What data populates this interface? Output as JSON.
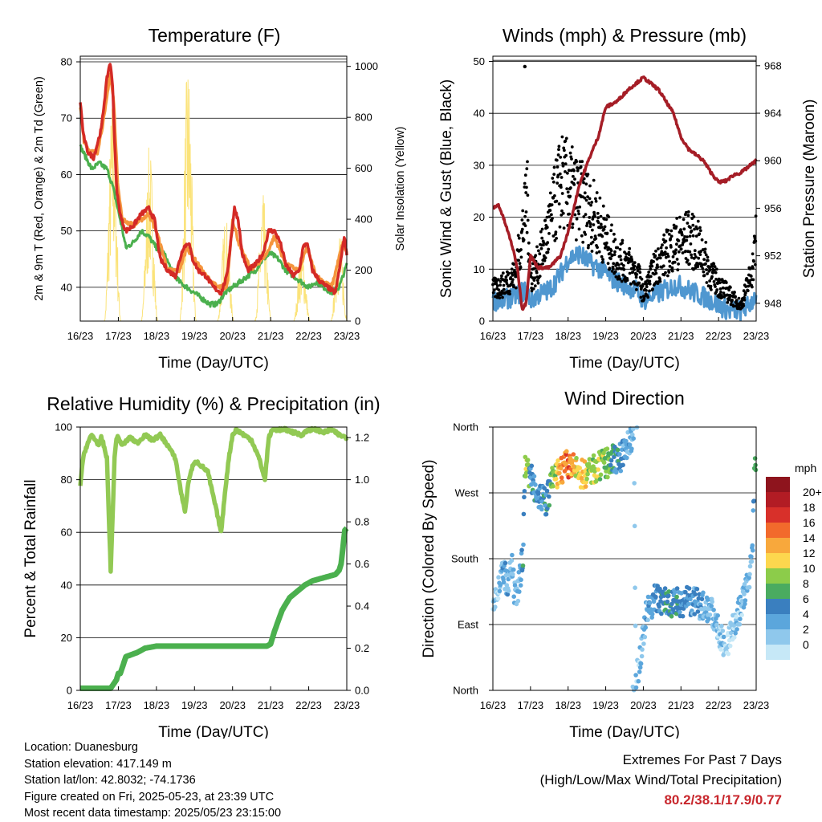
{
  "panels": {
    "temperature": {
      "title": "Temperature (F)",
      "ylabel_left": "2m & 9m T (Red, Orange) & 2m Td (Green)",
      "ylabel_right": "Solar Insolation (Yellow)",
      "xlabel": "Time (Day/UTC)"
    },
    "winds": {
      "title": "Winds (mph) & Pressure (mb)",
      "ylabel_left": "Sonic Wind & Gust (Blue, Black)",
      "ylabel_right": "Station Pressure (Maroon)",
      "xlabel": "Time (Day/UTC)"
    },
    "humidity": {
      "title": "Relative Humidity (%) & Precipitation (in)",
      "ylabel_left": "Percent & Total Rainfall",
      "xlabel": "Time (Day/UTC)"
    },
    "direction": {
      "title": "Wind Direction",
      "ylabel_left": "Direction (Colored By Speed)",
      "xlabel": "Time (Day/UTC)",
      "legend_title": "mph"
    }
  },
  "footer": {
    "location": "Location: Duanesburg",
    "elevation": "Station elevation: 417.149 m",
    "latlon": "Station lat/lon: 42.8032; -74.1736",
    "created": "Figure created on Fri, 2025-05-23, at 23:39 UTC",
    "recent": "Most recent data timestamp: 2025/05/23 23:15:00",
    "extremes_title": "Extremes For Past 7 Days",
    "extremes_sub": "(High/Low/Max Wind/Total Precipitation)",
    "extremes_values": "80.2/38.1/17.9/0.77"
  },
  "colors": {
    "temp_2m": "#d42a26",
    "temp_9m": "#f5953d",
    "dewpoint": "#4bb04e",
    "solar": "#fbe37a",
    "wind": "#4f97d0",
    "gust": "#000000",
    "pressure": "#a51d26",
    "rh": "#92c954",
    "precip": "#4bb04e",
    "speed_scale": [
      "#c6e8f7",
      "#8fc8ec",
      "#5ba6dc",
      "#3a7fbf",
      "#4aab60",
      "#8ccc4a",
      "#fdd74e",
      "#f8a83c",
      "#f26a2c",
      "#d8302a",
      "#b21c24",
      "#8e141d"
    ]
  },
  "chart_data": [
    {
      "id": "temperature",
      "type": "line",
      "x_ticks": [
        "16/23",
        "17/23",
        "18/23",
        "19/23",
        "20/23",
        "21/23",
        "22/23",
        "23/23"
      ],
      "y_left_ticks": [
        40,
        50,
        60,
        70,
        80
      ],
      "y_right_ticks": [
        0,
        200,
        400,
        600,
        800,
        1000
      ],
      "ylim": [
        34,
        81
      ],
      "ylim_right": [
        0,
        1040
      ],
      "xlim_days": [
        0,
        7
      ],
      "series": [
        {
          "name": "2m T",
          "axis": "left",
          "x": [
            0,
            0.08,
            0.2,
            0.35,
            0.55,
            0.7,
            0.78,
            0.85,
            0.9,
            0.95,
            1.0,
            1.08,
            1.2,
            1.4,
            1.6,
            1.8,
            1.95,
            2.1,
            2.3,
            2.5,
            2.7,
            2.85,
            2.95,
            3.1,
            3.3,
            3.5,
            3.7,
            3.85,
            3.95,
            4.05,
            4.15,
            4.25,
            4.4,
            4.6,
            4.8,
            4.95,
            5.1,
            5.25,
            5.4,
            5.6,
            5.75,
            5.85,
            5.95,
            6.1,
            6.3,
            6.5,
            6.7,
            6.85,
            6.93,
            7.0
          ],
          "y": [
            73,
            67,
            64,
            63,
            68,
            77,
            80,
            76,
            66,
            58,
            55,
            52,
            50,
            51,
            53,
            54,
            52,
            45,
            43,
            42,
            47,
            48,
            45,
            43,
            42,
            40,
            39,
            42,
            48,
            54,
            52,
            46,
            43,
            44,
            46,
            50,
            50,
            48,
            44,
            42,
            43,
            47,
            48,
            43,
            41,
            40,
            39,
            45,
            49,
            46
          ]
        },
        {
          "name": "9m T",
          "axis": "left",
          "x": [
            0,
            0.1,
            0.25,
            0.45,
            0.65,
            0.78,
            0.88,
            0.98,
            1.1,
            1.4,
            1.8,
            2.0,
            2.3,
            2.6,
            2.8,
            3.0,
            3.3,
            3.6,
            3.85,
            4.0,
            4.2,
            4.5,
            4.9,
            5.1,
            5.4,
            5.75,
            5.95,
            6.2,
            6.6,
            6.9,
            7.0
          ],
          "y": [
            72,
            66,
            64,
            64,
            71,
            78,
            73,
            59,
            52,
            51,
            53,
            50,
            43,
            43,
            47,
            45,
            42,
            40,
            40,
            52,
            47,
            43,
            46,
            49,
            44,
            43,
            47,
            42,
            40,
            48,
            46
          ]
        },
        {
          "name": "2m Td",
          "axis": "left",
          "x": [
            0,
            0.15,
            0.3,
            0.5,
            0.7,
            0.85,
            0.95,
            1.05,
            1.2,
            1.4,
            1.6,
            1.8,
            2.0,
            2.2,
            2.4,
            2.6,
            2.8,
            3.0,
            3.2,
            3.4,
            3.6,
            3.8,
            4.0,
            4.2,
            4.4,
            4.6,
            4.8,
            5.0,
            5.2,
            5.4,
            5.6,
            5.8,
            6.0,
            6.2,
            6.4,
            6.6,
            6.8,
            7.0
          ],
          "y": [
            65,
            63,
            61,
            62,
            61,
            58,
            55,
            52,
            47,
            48,
            50,
            49,
            47,
            46,
            43,
            41,
            40,
            39,
            38,
            37,
            37,
            39,
            40,
            41,
            42,
            43,
            45,
            46,
            45,
            43,
            42,
            41,
            40,
            41,
            40,
            39,
            40,
            44
          ]
        },
        {
          "name": "Solar Insolation",
          "axis": "right",
          "peaks_x": [
            0.85,
            1.82,
            2.83,
            3.82,
            4.8,
            5.82,
            6.8
          ],
          "peaks_y": [
            900,
            700,
            1040,
            420,
            500,
            300,
            380
          ]
        }
      ]
    },
    {
      "id": "winds",
      "type": "scatter",
      "x_ticks": [
        "16/23",
        "17/23",
        "18/23",
        "19/23",
        "20/23",
        "21/23",
        "22/23",
        "23/23"
      ],
      "y_left_ticks": [
        0,
        10,
        20,
        30,
        40,
        50
      ],
      "y_right_ticks": [
        948,
        952,
        956,
        960,
        964,
        968
      ],
      "ylim": [
        0,
        51
      ],
      "ylim_right": [
        946.5,
        968.8
      ],
      "xlim_days": [
        0,
        7
      ],
      "series": [
        {
          "name": "Sonic Wind",
          "axis": "left",
          "x": [
            0,
            0.3,
            0.6,
            0.9,
            1.0,
            1.2,
            1.5,
            1.8,
            2.0,
            2.3,
            2.6,
            2.9,
            3.2,
            3.5,
            3.8,
            4.0,
            4.3,
            4.6,
            4.9,
            5.2,
            5.5,
            5.8,
            6.0,
            6.3,
            6.6,
            6.8,
            7.0
          ],
          "y": [
            4,
            4,
            5,
            6,
            4,
            5,
            6,
            9,
            12,
            13,
            11,
            10,
            8,
            7,
            6,
            4,
            5,
            6,
            7,
            6,
            5,
            4,
            3,
            2,
            2,
            3,
            5
          ]
        },
        {
          "name": "Gust",
          "axis": "left",
          "x": [
            0,
            0.3,
            0.6,
            0.85,
            0.9,
            1.0,
            1.2,
            1.5,
            1.8,
            2.0,
            2.2,
            2.5,
            2.8,
            3.0,
            3.3,
            3.6,
            3.9,
            4.0,
            4.3,
            4.6,
            4.9,
            5.2,
            5.5,
            5.8,
            6.0,
            6.3,
            6.6,
            6.9,
            7.0
          ],
          "y": [
            6,
            7,
            9,
            20,
            26,
            8,
            11,
            18,
            27,
            26,
            24,
            22,
            19,
            16,
            12,
            11,
            8,
            5,
            10,
            13,
            15,
            16,
            14,
            9,
            7,
            5,
            3,
            10,
            16
          ]
        },
        {
          "name": "Station Pressure",
          "axis": "right",
          "x": [
            0,
            0.15,
            0.3,
            0.5,
            0.65,
            0.78,
            0.88,
            1.0,
            1.2,
            1.5,
            1.8,
            2.0,
            2.3,
            2.6,
            2.8,
            3.0,
            3.3,
            3.6,
            3.8,
            4.0,
            4.2,
            4.4,
            4.6,
            4.8,
            5.0,
            5.2,
            5.4,
            5.6,
            5.8,
            6.0,
            6.2,
            6.4,
            6.6,
            6.8,
            7.0
          ],
          "y": [
            956,
            956.3,
            955,
            953,
            951,
            947.5,
            948,
            952,
            951,
            951,
            952,
            954,
            958,
            960.5,
            962,
            964.5,
            965,
            966,
            966.5,
            967,
            966.5,
            966,
            965,
            964,
            962,
            961,
            960.5,
            960,
            959,
            958.2,
            958.3,
            958.8,
            959,
            959.5,
            960
          ]
        }
      ],
      "outlier": {
        "x": 0.85,
        "y": 49
      }
    },
    {
      "id": "humidity",
      "type": "line",
      "x_ticks": [
        "16/23",
        "17/23",
        "18/23",
        "19/23",
        "20/23",
        "21/23",
        "22/23",
        "23/23"
      ],
      "y_left_ticks": [
        0,
        20,
        40,
        60,
        80,
        100
      ],
      "y_right_ticks": [
        "0.0",
        "0.2",
        "0.4",
        "0.6",
        "0.8",
        "1.0",
        "1.2"
      ],
      "ylim": [
        0,
        100
      ],
      "ylim_right": [
        0,
        1.25
      ],
      "xlim_days": [
        0,
        7
      ],
      "series": [
        {
          "name": "RH",
          "axis": "left",
          "x": [
            0,
            0.05,
            0.1,
            0.2,
            0.3,
            0.4,
            0.5,
            0.55,
            0.6,
            0.7,
            0.8,
            0.9,
            0.95,
            1.0,
            1.1,
            1.3,
            1.5,
            1.7,
            1.9,
            2.1,
            2.3,
            2.5,
            2.65,
            2.75,
            2.85,
            2.95,
            3.05,
            3.2,
            3.35,
            3.55,
            3.7,
            3.8,
            3.9,
            4.0,
            4.1,
            4.3,
            4.5,
            4.7,
            4.85,
            4.95,
            5.05,
            5.2,
            5.4,
            5.6,
            5.8,
            6.0,
            6.2,
            6.4,
            6.6,
            6.8,
            7.0
          ],
          "y": [
            78,
            85,
            90,
            94,
            97,
            95,
            93,
            96,
            94,
            88,
            45,
            88,
            96,
            96,
            93,
            96,
            94,
            97,
            95,
            97,
            93,
            88,
            75,
            68,
            80,
            85,
            87,
            85,
            83,
            70,
            60,
            75,
            88,
            97,
            99,
            97,
            95,
            88,
            80,
            96,
            99,
            99,
            99,
            98,
            97,
            99,
            99,
            98,
            99,
            97,
            96
          ]
        },
        {
          "name": "Precipitation",
          "axis": "right",
          "x": [
            0,
            0.3,
            0.6,
            0.8,
            0.95,
            1.0,
            1.05,
            1.2,
            1.5,
            1.7,
            2.0,
            2.5,
            3.0,
            3.5,
            4.0,
            4.5,
            4.9,
            5.0,
            5.1,
            5.3,
            5.5,
            5.7,
            5.9,
            6.1,
            6.3,
            6.5,
            6.7,
            6.8,
            6.85,
            6.9,
            6.95,
            7.0
          ],
          "y": [
            0.01,
            0.01,
            0.01,
            0.01,
            0.05,
            0.08,
            0.08,
            0.16,
            0.18,
            0.2,
            0.21,
            0.21,
            0.21,
            0.21,
            0.21,
            0.21,
            0.21,
            0.22,
            0.28,
            0.38,
            0.44,
            0.47,
            0.5,
            0.52,
            0.53,
            0.54,
            0.55,
            0.57,
            0.6,
            0.68,
            0.76,
            0.77
          ]
        }
      ]
    },
    {
      "id": "direction",
      "type": "scatter",
      "x_ticks": [
        "16/23",
        "17/23",
        "18/23",
        "19/23",
        "20/23",
        "21/23",
        "22/23",
        "23/23"
      ],
      "y_ticks": [
        "North",
        "East",
        "South",
        "West",
        "North"
      ],
      "ylim": [
        0,
        360
      ],
      "xlim_days": [
        0,
        7
      ],
      "legend": {
        "title": "mph",
        "labels": [
          "0",
          "2",
          "4",
          "6",
          "8",
          "10",
          "12",
          "14",
          "16",
          "18",
          "20+"
        ]
      },
      "points": [
        {
          "x": 0.1,
          "d": 130,
          "s": 2
        },
        {
          "x": 0.2,
          "d": 150,
          "s": 3
        },
        {
          "x": 0.3,
          "d": 160,
          "s": 4
        },
        {
          "x": 0.4,
          "d": 140,
          "s": 3
        },
        {
          "x": 0.5,
          "d": 170,
          "s": 2
        },
        {
          "x": 0.6,
          "d": 120,
          "s": 4
        },
        {
          "x": 0.7,
          "d": 145,
          "s": 3
        },
        {
          "x": 0.8,
          "d": 190,
          "s": 6
        },
        {
          "x": 0.85,
          "d": 300,
          "s": 8
        },
        {
          "x": 0.9,
          "d": 310,
          "s": 12
        },
        {
          "x": 1.0,
          "d": 290,
          "s": 6
        },
        {
          "x": 1.2,
          "d": 270,
          "s": 5
        },
        {
          "x": 1.4,
          "d": 255,
          "s": 6
        },
        {
          "x": 1.6,
          "d": 290,
          "s": 9
        },
        {
          "x": 1.8,
          "d": 300,
          "s": 14
        },
        {
          "x": 2.0,
          "d": 310,
          "s": 16
        },
        {
          "x": 2.2,
          "d": 300,
          "s": 12
        },
        {
          "x": 2.4,
          "d": 295,
          "s": 13
        },
        {
          "x": 2.6,
          "d": 300,
          "s": 10
        },
        {
          "x": 2.8,
          "d": 305,
          "s": 11
        },
        {
          "x": 3.0,
          "d": 310,
          "s": 9
        },
        {
          "x": 3.2,
          "d": 315,
          "s": 7
        },
        {
          "x": 3.4,
          "d": 320,
          "s": 5
        },
        {
          "x": 3.6,
          "d": 335,
          "s": 4
        },
        {
          "x": 3.75,
          "d": 350,
          "s": 3
        },
        {
          "x": 3.8,
          "d": 10,
          "s": 2
        },
        {
          "x": 3.9,
          "d": 40,
          "s": 2
        },
        {
          "x": 4.0,
          "d": 80,
          "s": 3
        },
        {
          "x": 4.1,
          "d": 110,
          "s": 4
        },
        {
          "x": 4.3,
          "d": 125,
          "s": 5
        },
        {
          "x": 4.6,
          "d": 122,
          "s": 7
        },
        {
          "x": 4.9,
          "d": 120,
          "s": 6
        },
        {
          "x": 5.2,
          "d": 122,
          "s": 5
        },
        {
          "x": 5.5,
          "d": 118,
          "s": 4
        },
        {
          "x": 5.8,
          "d": 110,
          "s": 3
        },
        {
          "x": 6.0,
          "d": 80,
          "s": 2
        },
        {
          "x": 6.2,
          "d": 60,
          "s": 1
        },
        {
          "x": 6.5,
          "d": 100,
          "s": 2
        },
        {
          "x": 6.7,
          "d": 130,
          "s": 3
        },
        {
          "x": 6.9,
          "d": 180,
          "s": 3
        },
        {
          "x": 6.95,
          "d": 300,
          "s": 7
        }
      ]
    }
  ]
}
